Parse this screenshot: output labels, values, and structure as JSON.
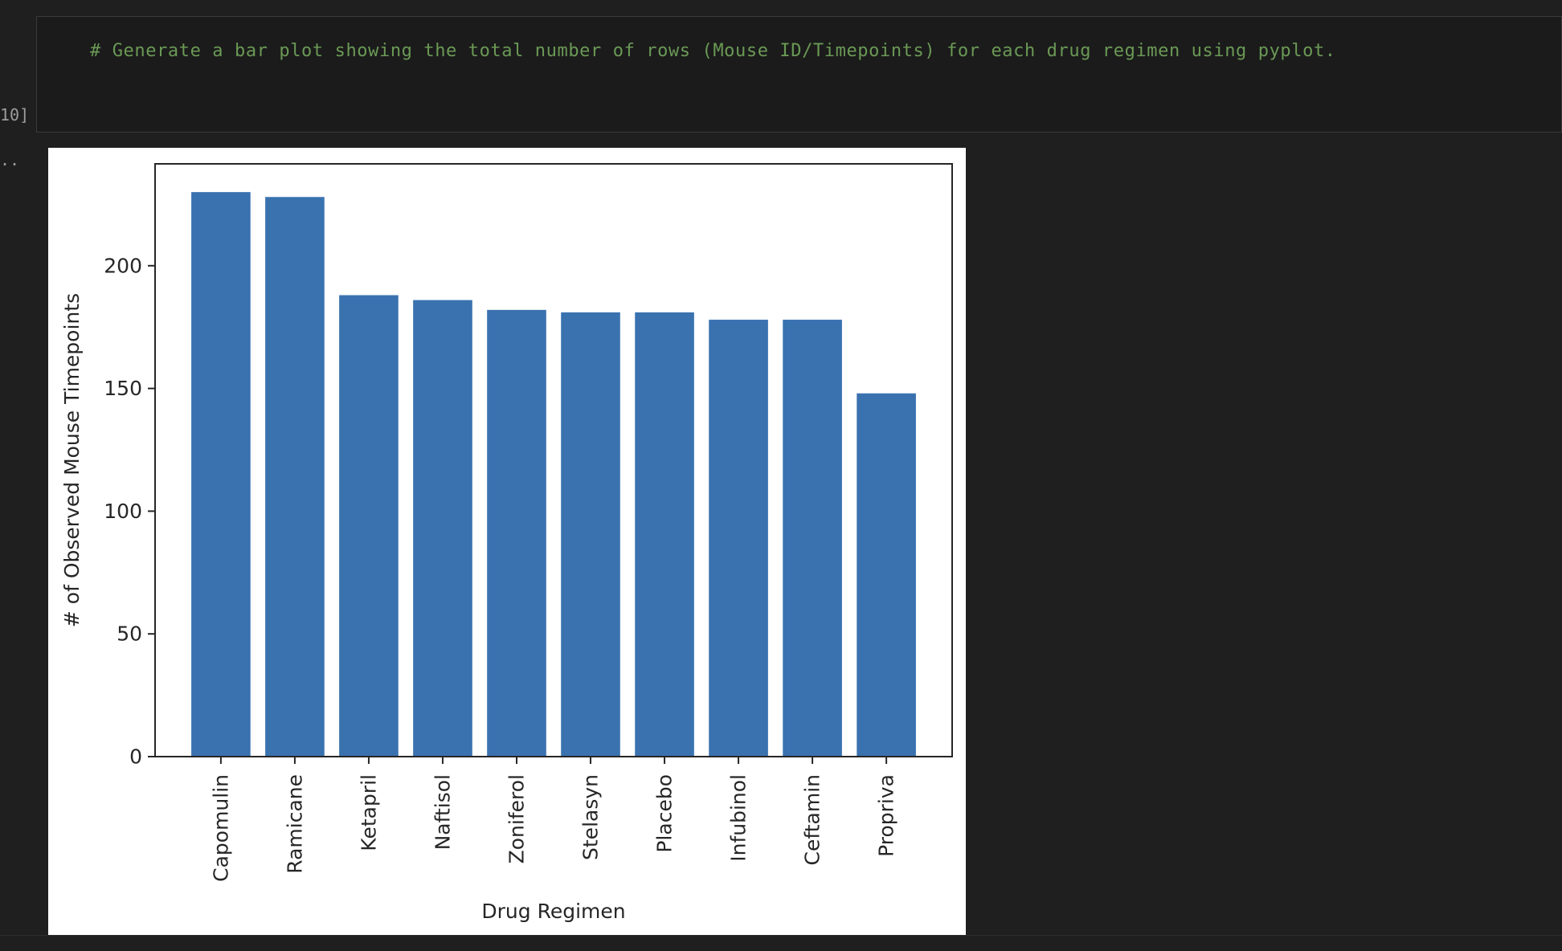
{
  "cell": {
    "code": "# Generate a bar plot showing the total number of rows (Mouse ID/Timepoints) for each drug regimen using pyplot.",
    "execution_count_label": "10]",
    "output_marker": ".."
  },
  "colors": {
    "bar": "#3a72b0",
    "editor_background": "#1b1b1b",
    "page_background": "#1f1f1f",
    "comment_text": "#6a9955"
  },
  "chart_data": {
    "type": "bar",
    "categories": [
      "Capomulin",
      "Ramicane",
      "Ketapril",
      "Naftisol",
      "Zoniferol",
      "Stelasyn",
      "Placebo",
      "Infubinol",
      "Ceftamin",
      "Propriva"
    ],
    "values": [
      230,
      228,
      188,
      186,
      182,
      181,
      181,
      178,
      178,
      148
    ],
    "title": "",
    "xlabel": "Drug Regimen",
    "ylabel": "# of Observed Mouse Timepoints",
    "ylim": [
      0,
      241.5
    ],
    "yticks": [
      0,
      50,
      100,
      150,
      200
    ],
    "tick_label_rotation": "vertical",
    "grid": false,
    "legend": "none"
  }
}
